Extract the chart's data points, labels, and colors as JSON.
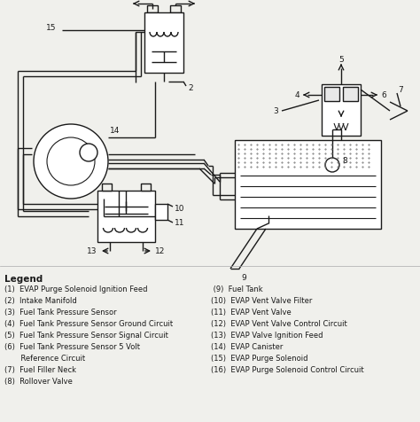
{
  "bg_color": "#f0f0ec",
  "line_color": "#1a1a1a",
  "legend_title": "Legend",
  "legend_items_left": [
    "(1)  EVAP Purge Solenoid Ignition Feed",
    "(2)  Intake Manifold",
    "(3)  Fuel Tank Pressure Sensor",
    "(4)  Fuel Tank Pressure Sensor Ground Circuit",
    "(5)  Fuel Tank Pressure Sensor Signal Circuit",
    "(6)  Fuel Tank Pressure Sensor 5 Volt",
    "       Reference Circuit",
    "(7)  Fuel Filler Neck",
    "(8)  Rollover Valve"
  ],
  "legend_items_right": [
    " (9)  Fuel Tank",
    "(10)  EVAP Vent Valve Filter",
    "(11)  EVAP Vent Valve",
    "(12)  EVAP Vent Valve Control Circuit",
    "(13)  EVAP Valve Ignition Feed",
    "(14)  EVAP Canister",
    "(15)  EVAP Purge Solenoid",
    "(16)  EVAP Purge Solenoid Control Circuit"
  ]
}
